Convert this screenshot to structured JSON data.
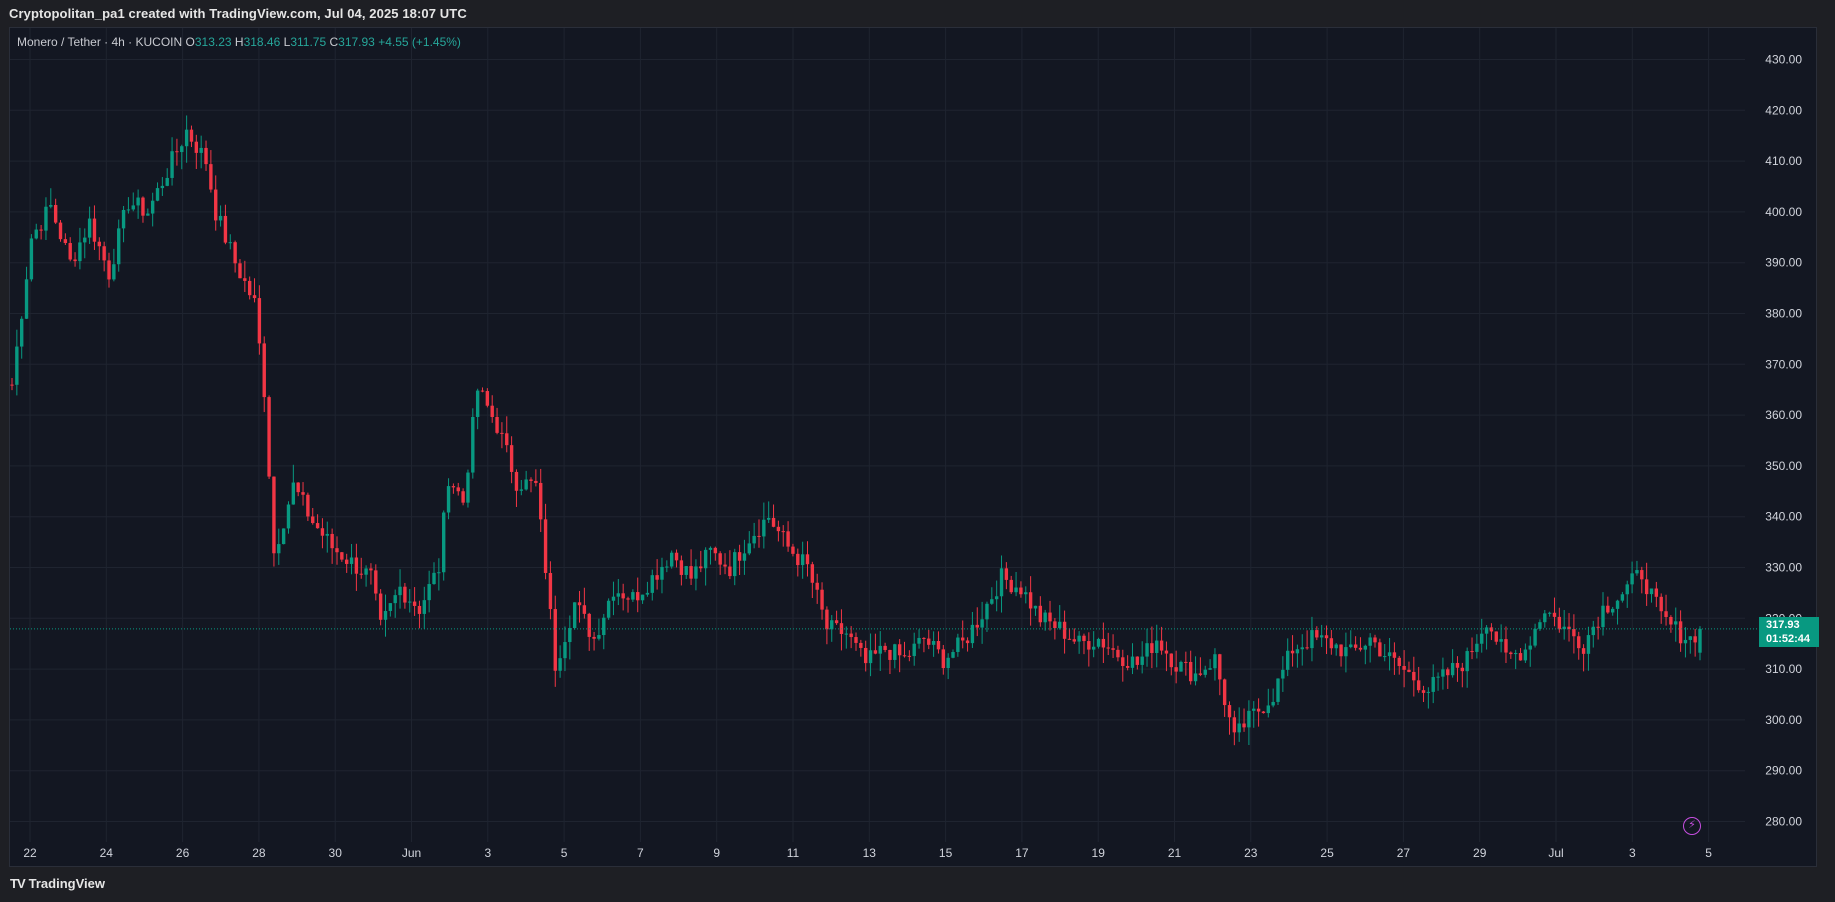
{
  "caption": "Cryptopolitan_pa1 created with TradingView.com, Jul 04, 2025 18:07 UTC",
  "legend": {
    "symbol": "Monero / Tether · 4h · KUCOIN",
    "o_label": "O",
    "o_value": "313.23",
    "h_label": "H",
    "h_value": "318.46",
    "l_label": "L",
    "l_value": "311.75",
    "c_label": "C",
    "c_value": "317.93",
    "change": "+4.55 (+1.45%)"
  },
  "price_tag": {
    "price": "317.93",
    "countdown": "01:52:44"
  },
  "footer": {
    "logo_mark": "TV",
    "brand": "TradingView"
  },
  "icons": {
    "alert": "lightning-bolt-icon",
    "logo": "tradingview-logo-icon"
  },
  "colors": {
    "up": "#089981",
    "down": "#f23645",
    "background": "#131722",
    "grid": "#1f2430",
    "current_price_line": "#089981",
    "price_tag": "#089981"
  },
  "chart_data": {
    "type": "candlestick",
    "title": "",
    "xlabel": "",
    "ylabel": "",
    "ylim": [
      276,
      436
    ],
    "grid": true,
    "y_ticks": [
      "280.00",
      "290.00",
      "300.00",
      "310.00",
      "320.00",
      "330.00",
      "340.00",
      "350.00",
      "360.00",
      "370.00",
      "380.00",
      "390.00",
      "400.00",
      "410.00",
      "420.00",
      "430.00"
    ],
    "x_ticks": [
      "22",
      "24",
      "26",
      "28",
      "30",
      "Jun",
      "3",
      "5",
      "7",
      "9",
      "11",
      "13",
      "15",
      "17",
      "19",
      "21",
      "23",
      "25",
      "27",
      "29",
      "Jul",
      "3",
      "5"
    ],
    "current_price": 317.93,
    "close_anchors": [
      [
        0,
        366
      ],
      [
        4,
        395
      ],
      [
        8,
        401
      ],
      [
        12,
        390
      ],
      [
        16,
        398
      ],
      [
        20,
        388
      ],
      [
        24,
        402
      ],
      [
        28,
        400
      ],
      [
        32,
        408
      ],
      [
        36,
        416
      ],
      [
        40,
        410
      ],
      [
        42,
        400
      ],
      [
        46,
        390
      ],
      [
        50,
        382
      ],
      [
        52,
        365
      ],
      [
        54,
        333
      ],
      [
        58,
        346
      ],
      [
        62,
        339
      ],
      [
        66,
        334
      ],
      [
        70,
        331
      ],
      [
        74,
        328
      ],
      [
        76,
        318
      ],
      [
        80,
        326
      ],
      [
        84,
        322
      ],
      [
        88,
        330
      ],
      [
        90,
        348
      ],
      [
        93,
        343
      ],
      [
        96,
        365
      ],
      [
        100,
        358
      ],
      [
        104,
        347
      ],
      [
        108,
        346
      ],
      [
        110,
        330
      ],
      [
        112,
        311
      ],
      [
        116,
        323
      ],
      [
        120,
        316
      ],
      [
        124,
        326
      ],
      [
        128,
        324
      ],
      [
        132,
        328
      ],
      [
        136,
        333
      ],
      [
        140,
        328
      ],
      [
        144,
        333
      ],
      [
        148,
        330
      ],
      [
        152,
        336
      ],
      [
        156,
        340
      ],
      [
        160,
        334
      ],
      [
        164,
        330
      ],
      [
        168,
        318
      ],
      [
        172,
        317
      ],
      [
        176,
        311
      ],
      [
        180,
        314
      ],
      [
        184,
        312
      ],
      [
        188,
        316
      ],
      [
        192,
        312
      ],
      [
        196,
        315
      ],
      [
        200,
        321
      ],
      [
        204,
        328
      ],
      [
        208,
        326
      ],
      [
        212,
        320
      ],
      [
        216,
        318
      ],
      [
        220,
        315
      ],
      [
        224,
        316
      ],
      [
        228,
        313
      ],
      [
        232,
        311
      ],
      [
        236,
        316
      ],
      [
        240,
        311
      ],
      [
        244,
        309
      ],
      [
        248,
        312
      ],
      [
        252,
        296
      ],
      [
        254,
        299
      ],
      [
        258,
        303
      ],
      [
        260,
        305
      ],
      [
        264,
        314
      ],
      [
        268,
        316
      ],
      [
        272,
        315
      ],
      [
        276,
        313
      ],
      [
        280,
        316
      ],
      [
        284,
        312
      ],
      [
        288,
        309
      ],
      [
        292,
        306
      ],
      [
        296,
        309
      ],
      [
        300,
        312
      ],
      [
        304,
        320
      ],
      [
        308,
        312
      ],
      [
        312,
        314
      ],
      [
        316,
        322
      ],
      [
        320,
        318
      ],
      [
        324,
        315
      ],
      [
        328,
        322
      ],
      [
        332,
        325
      ],
      [
        336,
        329
      ],
      [
        340,
        320
      ],
      [
        344,
        317
      ],
      [
        346,
        316
      ],
      [
        348,
        318
      ]
    ],
    "candle_count": 349,
    "last_candle": {
      "open": 313.23,
      "high": 318.46,
      "low": 311.75,
      "close": 317.93
    }
  }
}
